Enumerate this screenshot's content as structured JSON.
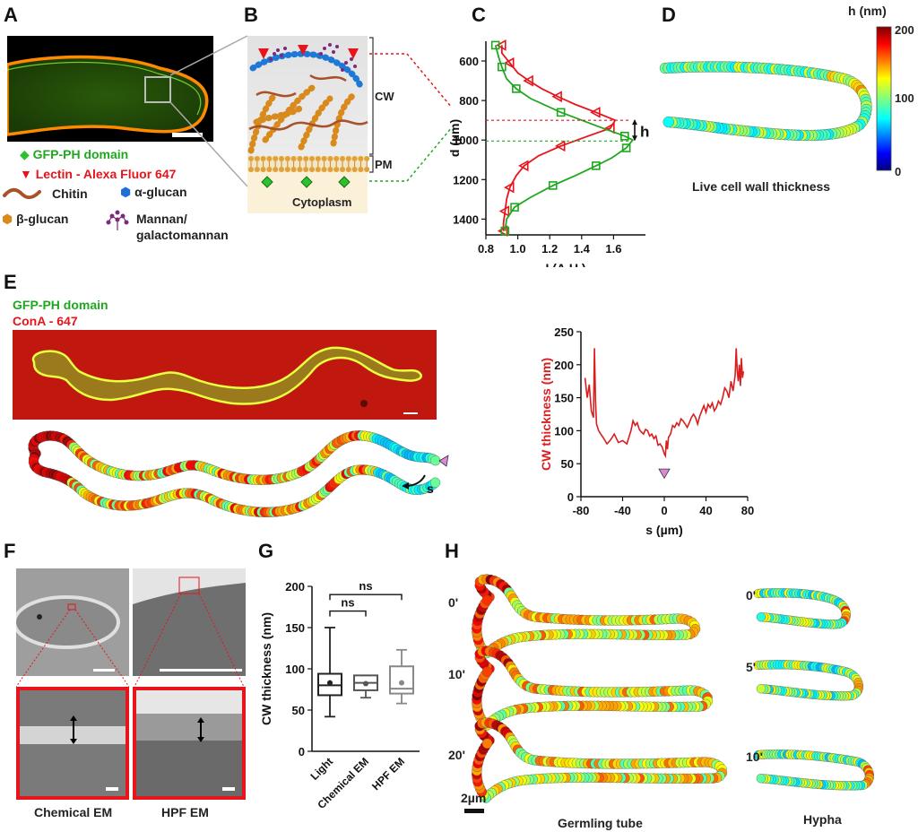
{
  "panels": {
    "a": "A",
    "b": "B",
    "c": "C",
    "d": "D",
    "e": "E",
    "f": "F",
    "g": "G",
    "h": "H"
  },
  "legend_a": {
    "gfp": "GFP-PH domain",
    "lectin": "Lectin - Alexa Fluor 647",
    "chitin": "Chitin",
    "alpha": "α-glucan",
    "beta": "β-glucan",
    "mannan1": "Mannan/",
    "mannan2": "galactomannan"
  },
  "diagram_b": {
    "cw": "CW",
    "pm": "PM",
    "cyto": "Cytoplasm"
  },
  "panel_d": {
    "caption": "Live cell wall thickness",
    "colorbar_title": "h (nm)",
    "colorbar_ticks": [
      "200",
      "100",
      "0"
    ]
  },
  "legend_e": {
    "gfp": "GFP-PH domain",
    "cona": "ConA - 647",
    "s": "s"
  },
  "panel_f": {
    "chem": "Chemical EM",
    "hpf": "HPF EM"
  },
  "panel_h": {
    "germ_times": [
      "0'",
      "10'",
      "20'"
    ],
    "hypha_times": [
      "0'",
      "5'",
      "10'"
    ],
    "germ": "Germling tube",
    "hypha": "Hypha",
    "scale": "2µm"
  },
  "colors": {
    "green": "#1fa81f",
    "red": "#e8141b",
    "trace": "#d81e1e"
  },
  "chart_data": [
    {
      "id": "C",
      "type": "line",
      "xlabel": "I (A.U.)",
      "ylabel": "d (µm)",
      "xlim": [
        0.8,
        1.8
      ],
      "ylim": [
        1480,
        500
      ],
      "xticks": [
        0.8,
        1.0,
        1.2,
        1.4,
        1.6
      ],
      "xtick_labels": [
        "0.8",
        "1.0",
        "1.2",
        "1.4",
        "1.6"
      ],
      "yticks": [
        600,
        800,
        1000,
        1200,
        1400
      ],
      "ytick_labels": [
        "600",
        "800",
        "1000",
        "1200",
        "1400"
      ],
      "annotation": "h",
      "series": [
        {
          "color": "#e8141b",
          "marker": "triangle",
          "d": [
            520,
            560,
            610,
            660,
            700,
            740,
            780,
            820,
            860,
            900,
            940,
            980,
            1030,
            1080,
            1130,
            1180,
            1240,
            1300,
            1360,
            1420,
            1460
          ],
          "i": [
            0.9,
            0.9,
            0.95,
            1.0,
            1.07,
            1.15,
            1.25,
            1.36,
            1.49,
            1.61,
            1.58,
            1.44,
            1.27,
            1.13,
            1.04,
            0.99,
            0.95,
            0.93,
            0.92,
            0.91,
            0.91
          ]
        },
        {
          "color": "#1fa81f",
          "marker": "square",
          "d": [
            520,
            580,
            630,
            690,
            740,
            790,
            860,
            930,
            980,
            1000,
            1040,
            1090,
            1130,
            1180,
            1230,
            1290,
            1340,
            1400,
            1460
          ],
          "i": [
            0.86,
            0.88,
            0.9,
            0.93,
            0.99,
            1.08,
            1.27,
            1.5,
            1.67,
            1.72,
            1.68,
            1.59,
            1.49,
            1.36,
            1.22,
            1.08,
            0.98,
            0.93,
            0.92
          ]
        }
      ]
    },
    {
      "id": "E",
      "type": "line",
      "xlabel": "s (µm)",
      "ylabel": "CW thickness (nm)",
      "xlim": [
        -80,
        80
      ],
      "ylim": [
        0,
        250
      ],
      "xticks": [
        -80,
        -40,
        0,
        40,
        80
      ],
      "xtick_labels": [
        "-80",
        "-40",
        "0",
        "40",
        "80"
      ],
      "yticks": [
        0,
        50,
        100,
        150,
        200,
        250
      ],
      "ytick_labels": [
        "0",
        "50",
        "100",
        "150",
        "200",
        "250"
      ],
      "marker_at_s": 0,
      "series": [
        {
          "color": "#d81e1e",
          "x": [
            -76,
            -74,
            -72,
            -70,
            -68,
            -67,
            -66,
            -65,
            -63,
            -61,
            -58,
            -55,
            -52,
            -50,
            -48,
            -44,
            -40,
            -36,
            -32,
            -30,
            -28,
            -26,
            -24,
            -22,
            -20,
            -18,
            -16,
            -14,
            -12,
            -10,
            -8,
            -6,
            -4,
            -2,
            0,
            1,
            2,
            3,
            4,
            6,
            8,
            10,
            12,
            14,
            16,
            18,
            20,
            22,
            24,
            26,
            28,
            30,
            32,
            34,
            36,
            38,
            40,
            42,
            44,
            46,
            48,
            50,
            52,
            54,
            56,
            58,
            60,
            62,
            64,
            66,
            68,
            69,
            70,
            71,
            72,
            73,
            74,
            75,
            76
          ],
          "y": [
            180,
            150,
            170,
            130,
            120,
            225,
            145,
            110,
            100,
            95,
            88,
            80,
            85,
            90,
            95,
            82,
            85,
            80,
            100,
            115,
            108,
            112,
            102,
            98,
            95,
            102,
            100,
            92,
            95,
            88,
            92,
            78,
            80,
            75,
            65,
            62,
            85,
            72,
            90,
            95,
            108,
            105,
            112,
            108,
            118,
            115,
            110,
            105,
            112,
            120,
            125,
            120,
            110,
            122,
            130,
            138,
            128,
            140,
            135,
            142,
            130,
            135,
            145,
            140,
            150,
            165,
            160,
            150,
            175,
            160,
            185,
            225,
            190,
            175,
            200,
            168,
            210,
            180,
            190
          ]
        }
      ]
    },
    {
      "id": "G",
      "type": "box",
      "ylabel": "CW thickness (nm)",
      "ylim": [
        0,
        200
      ],
      "yticks": [
        0,
        50,
        100,
        150,
        200
      ],
      "ytick_labels": [
        "0",
        "50",
        "100",
        "150",
        "200"
      ],
      "categories": [
        "Light",
        "Chemical EM",
        "HPF EM"
      ],
      "boxes": [
        {
          "min": 42,
          "q1": 68,
          "median": 80,
          "q3": 94,
          "max": 150,
          "mean": 83,
          "color": "#222222"
        },
        {
          "min": 65,
          "q1": 74,
          "median": 83,
          "q3": 92,
          "max": 92,
          "mean": 82,
          "color": "#555555"
        },
        {
          "min": 58,
          "q1": 70,
          "median": 76,
          "q3": 103,
          "max": 123,
          "mean": 83,
          "color": "#888888"
        }
      ],
      "brackets": [
        {
          "from": "Light",
          "to": "Chemical EM",
          "label": "ns"
        },
        {
          "from": "Light",
          "to": "HPF EM",
          "label": "ns"
        }
      ]
    }
  ]
}
